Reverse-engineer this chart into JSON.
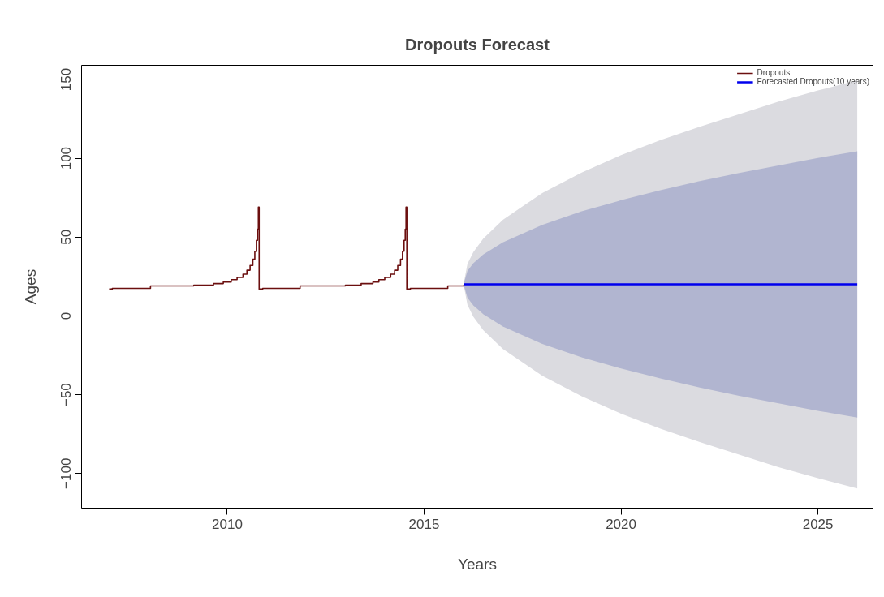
{
  "chart_data": {
    "type": "line",
    "title": "Dropouts Forecast",
    "xlabel": "Years",
    "ylabel": "Ages",
    "xlim": [
      2006.3,
      2026.4
    ],
    "ylim": [
      -122,
      159
    ],
    "xticks": [
      2010,
      2015,
      2020,
      2025
    ],
    "yticks": [
      -100,
      -50,
      0,
      50,
      100,
      150
    ],
    "grid": false,
    "legend": "top right",
    "series": [
      {
        "name": "Dropouts",
        "type": "step",
        "color": "#6b0f0f",
        "x": [
          2007.0,
          2007.08,
          2008.05,
          2009.15,
          2009.65,
          2009.9,
          2010.1,
          2010.25,
          2010.4,
          2010.5,
          2010.58,
          2010.65,
          2010.7,
          2010.74,
          2010.77,
          2010.79,
          2010.81,
          2010.9,
          2011.85,
          2013.0,
          2013.4,
          2013.7,
          2013.85,
          2014.0,
          2014.15,
          2014.25,
          2014.33,
          2014.4,
          2014.45,
          2014.49,
          2014.52,
          2014.54,
          2014.56,
          2014.65,
          2015.6,
          2016.0
        ],
        "values": [
          17,
          17.5,
          19,
          19.5,
          20.5,
          21.5,
          23,
          24.5,
          26.5,
          29,
          32,
          36,
          41,
          48,
          55,
          69,
          17,
          17.5,
          19,
          19.5,
          20.5,
          21.5,
          23,
          24.5,
          26.5,
          29,
          32,
          36,
          41,
          48,
          55,
          69,
          17,
          17.5,
          19,
          19.5
        ]
      },
      {
        "type": "area",
        "color": "#dbdbe0",
        "x": [
          2016,
          2016.1,
          2016.25,
          2016.5,
          2017,
          2018,
          2019,
          2020,
          2021,
          2022,
          2023,
          2024,
          2025,
          2026
        ],
        "values": [
          null,
          null,
          null,
          null,
          null,
          null,
          null,
          null,
          null,
          null,
          null,
          null,
          null,
          null
        ],
        "lower": [
          20,
          7,
          -0.5,
          -9,
          -21,
          -38,
          -51,
          -62,
          -71.5,
          -80,
          -88,
          -96,
          -103,
          -109.5
        ],
        "upper": [
          20,
          33,
          40.5,
          49,
          61,
          78,
          91,
          102,
          111.5,
          120,
          128,
          136,
          143,
          149.5
        ]
      },
      {
        "type": "area",
        "color": "#b1b5d0",
        "x": [
          2016,
          2016.1,
          2016.25,
          2016.5,
          2017,
          2018,
          2019,
          2020,
          2021,
          2022,
          2023,
          2024,
          2025,
          2026
        ],
        "values": [
          null,
          null,
          null,
          null,
          null,
          null,
          null,
          null,
          null,
          null,
          null,
          null,
          null,
          null
        ],
        "lower": [
          20,
          11.5,
          6.6,
          1.1,
          -6.7,
          -17.8,
          -26.3,
          -33.4,
          -39.7,
          -45.5,
          -50.7,
          -55.5,
          -60.2,
          -64.5
        ],
        "upper": [
          20,
          28.5,
          33.4,
          38.9,
          46.7,
          57.8,
          66.3,
          73.4,
          79.7,
          85.5,
          90.7,
          95.5,
          100.2,
          104.5
        ]
      },
      {
        "name": "Forecasted Dropouts(10 years)",
        "color": "#0000ee",
        "x": [
          2016,
          2026
        ],
        "values": [
          20,
          20
        ]
      }
    ]
  }
}
